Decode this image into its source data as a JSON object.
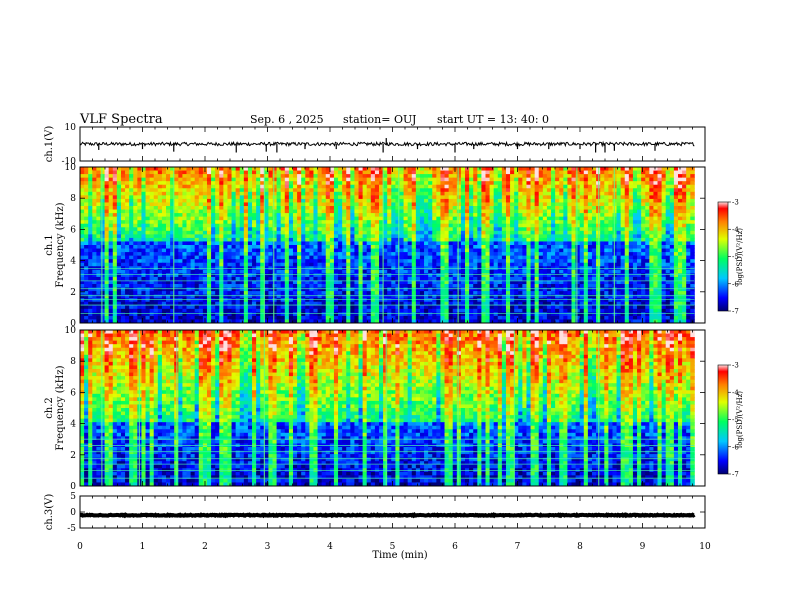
{
  "header": {
    "title": "VLF Spectra",
    "date": "Sep. 6 , 2025",
    "station": "station= OUJ",
    "start": "start  UT  =   13: 40: 0"
  },
  "chart_data": [
    {
      "type": "line",
      "name": "ch1-waveform",
      "ylabel": "ch.1(V)",
      "ylim": [
        -10,
        10
      ],
      "yticks": [
        "10",
        "-10"
      ],
      "baseline": 0.0,
      "noise_amplitude": 1.0,
      "spikes": [
        {
          "t": 0.3,
          "v": -3.5
        },
        {
          "t": 1.0,
          "v": -3
        },
        {
          "t": 1.5,
          "v": -4.5
        },
        {
          "t": 2.5,
          "v": -5
        },
        {
          "t": 2.98,
          "v": -4.5
        },
        {
          "t": 3.15,
          "v": -5
        },
        {
          "t": 3.6,
          "v": -3
        },
        {
          "t": 4.1,
          "v": -3
        },
        {
          "t": 4.85,
          "v": -5
        },
        {
          "t": 4.9,
          "v": 3.5
        },
        {
          "t": 5.4,
          "v": -3
        },
        {
          "t": 6.0,
          "v": -5
        },
        {
          "t": 6.3,
          "v": -3
        },
        {
          "t": 7.0,
          "v": -3
        },
        {
          "t": 7.5,
          "v": -3
        },
        {
          "t": 8.0,
          "v": -3
        },
        {
          "t": 8.25,
          "v": -5
        },
        {
          "t": 8.4,
          "v": -5
        },
        {
          "t": 8.55,
          "v": -4
        },
        {
          "t": 9.2,
          "v": -4
        }
      ]
    },
    {
      "type": "heatmap",
      "name": "ch1-spectrogram",
      "ylabel": "ch.1\nFrequency (kHz)",
      "xlim": [
        0,
        9.83
      ],
      "ylim": [
        0,
        10
      ],
      "yticks": [
        "0",
        "2",
        "4",
        "6",
        "8",
        "10"
      ],
      "colorbar": {
        "label": "log(PSD)(V²/Hz)",
        "range": [
          -7,
          -3
        ],
        "ticks": [
          "-3",
          "-4",
          "-5",
          "-6",
          "-7"
        ]
      },
      "dark_band_top_khz": 5.2,
      "lines_khz": [
        0.6,
        1.15,
        1.5,
        1.75,
        2.2,
        2.7,
        3.1,
        3.5
      ],
      "vertical_lines_t": [
        0.35,
        1.5,
        2.95,
        3.1,
        4.85,
        5.1,
        6.05,
        7.95,
        8.3,
        8.55
      ]
    },
    {
      "type": "heatmap",
      "name": "ch2-spectrogram",
      "ylabel": "ch.2\nFrequency (kHz)",
      "xlim": [
        0,
        9.83
      ],
      "ylim": [
        0,
        10
      ],
      "yticks": [
        "0",
        "2",
        "4",
        "6",
        "8",
        "10"
      ],
      "colorbar": {
        "label": "log(PSD)(V²/Hz)",
        "range": [
          -7,
          -3
        ],
        "ticks": [
          "-3",
          "-4",
          "-5",
          "-6",
          "-7"
        ]
      },
      "dark_band_top_khz": 4.0,
      "lines_khz": [
        0.5,
        1.0,
        1.4,
        1.75,
        2.2,
        2.6,
        3.0
      ],
      "vertical_lines_t": [
        0.35,
        0.95,
        1.55,
        2.95,
        4.9,
        6.05,
        6.95,
        8.3
      ]
    },
    {
      "type": "line",
      "name": "ch3-waveform",
      "ylabel": "ch.3(V)",
      "ylim": [
        -5,
        5
      ],
      "yticks": [
        "5",
        "0",
        "-5"
      ],
      "baseline": -1.0,
      "noise_amplitude": 0.15,
      "spikes": []
    }
  ],
  "xaxis": {
    "label": "Time  (min)",
    "ticks": [
      "0",
      "1",
      "2",
      "3",
      "4",
      "5",
      "6",
      "7",
      "8",
      "9",
      "10"
    ],
    "xlim": [
      0,
      10
    ]
  }
}
